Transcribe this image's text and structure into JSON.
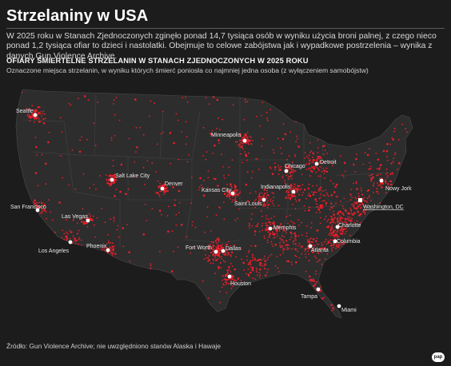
{
  "header": {
    "title": "Strzelaniny w USA",
    "intro": "W 2025 roku w Stanach Zjednoczonych zginęło ponad 14,7 tysiąca osób w wyniku użycia broni palnej, z czego nieco ponad 1,2 tysiąca ofiar to dzieci i nastolatki. Obejmuje to celowe zabójstwa jak i wypadkowe postrzelenia – wynika z danych Gun Violence Archive."
  },
  "map": {
    "heading": "OFIARY ŚMIERTELNE STRZELANIN W STANACH ZJEDNOCZONYCH W 2025 ROKU",
    "subheading": "Oznaczone miejsca strzelanin, w wyniku których śmierć poniosła co najmniej jedna osoba (z wyłączeniem samobójstw)",
    "marker_color": "#e8202a",
    "land_color": "#2d2d2d",
    "border_color": "#555555",
    "cities": [
      {
        "name": "Seattle"
      },
      {
        "name": "San Francisco"
      },
      {
        "name": "Los Angeles"
      },
      {
        "name": "Las Vegas"
      },
      {
        "name": "Phoenix"
      },
      {
        "name": "Salt Lake City"
      },
      {
        "name": "Denver"
      },
      {
        "name": "Minneapolis"
      },
      {
        "name": "Kansas City"
      },
      {
        "name": "Saint Louis"
      },
      {
        "name": "Chicago"
      },
      {
        "name": "Detroit"
      },
      {
        "name": "Indianapolis"
      },
      {
        "name": "Memphis"
      },
      {
        "name": "Fort Worth"
      },
      {
        "name": "Dallas"
      },
      {
        "name": "Houston"
      },
      {
        "name": "Atlanta"
      },
      {
        "name": "Charlotte"
      },
      {
        "name": "Columbia"
      },
      {
        "name": "Washington, DC"
      },
      {
        "name": "Nowy Jork"
      },
      {
        "name": "Tampa"
      },
      {
        "name": "Miami"
      }
    ]
  },
  "footer": {
    "source": "Źródło: Gun Violence Archive; nie uwzględniono stanów Alaska i Hawaje",
    "logo": "pap"
  }
}
